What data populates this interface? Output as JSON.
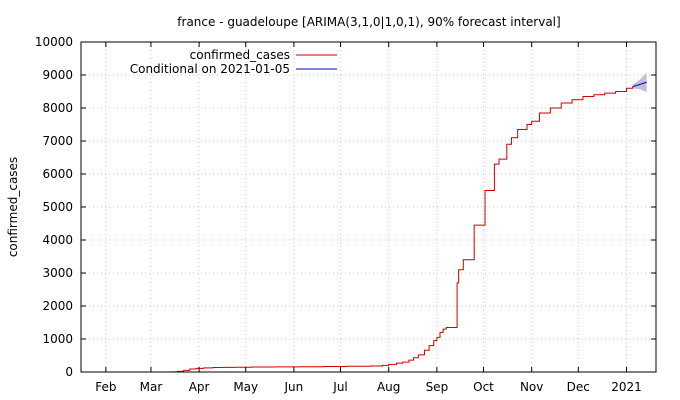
{
  "chart_data": {
    "type": "line",
    "title": "france - guadeloupe [ARIMA(3,1,0|1,0,1), 90% forecast interval]",
    "xlabel": "",
    "ylabel": "confirmed_cases",
    "ylim": [
      0,
      10000
    ],
    "y_ticks": [
      "0",
      "1000",
      "2000",
      "3000",
      "4000",
      "5000",
      "6000",
      "7000",
      "8000",
      "9000",
      "10000"
    ],
    "x_ticks": [
      {
        "label": "Feb",
        "date": "2020-02-01"
      },
      {
        "label": "Mar",
        "date": "2020-03-01"
      },
      {
        "label": "Apr",
        "date": "2020-04-01"
      },
      {
        "label": "May",
        "date": "2020-05-01"
      },
      {
        "label": "Jun",
        "date": "2020-06-01"
      },
      {
        "label": "Jul",
        "date": "2020-07-01"
      },
      {
        "label": "Aug",
        "date": "2020-08-01"
      },
      {
        "label": "Sep",
        "date": "2020-09-01"
      },
      {
        "label": "Oct",
        "date": "2020-10-01"
      },
      {
        "label": "Nov",
        "date": "2020-11-01"
      },
      {
        "label": "Dec",
        "date": "2020-12-01"
      },
      {
        "label": "2021",
        "date": "2021-01-01"
      }
    ],
    "xlim": [
      "2020-01-16",
      "2021-01-20"
    ],
    "grid": true,
    "legend_position": "top-left",
    "series": [
      {
        "name": "confirmed_cases",
        "color": "#cc0000",
        "style": "step",
        "points": [
          [
            "2020-01-16",
            0
          ],
          [
            "2020-03-12",
            0
          ],
          [
            "2020-03-14",
            5
          ],
          [
            "2020-03-18",
            20
          ],
          [
            "2020-03-22",
            50
          ],
          [
            "2020-03-26",
            90
          ],
          [
            "2020-03-30",
            110
          ],
          [
            "2020-04-04",
            125
          ],
          [
            "2020-04-10",
            135
          ],
          [
            "2020-04-16",
            140
          ],
          [
            "2020-04-24",
            145
          ],
          [
            "2020-05-05",
            150
          ],
          [
            "2020-05-20",
            155
          ],
          [
            "2020-06-05",
            160
          ],
          [
            "2020-06-20",
            165
          ],
          [
            "2020-07-05",
            175
          ],
          [
            "2020-07-20",
            180
          ],
          [
            "2020-07-28",
            200
          ],
          [
            "2020-08-01",
            230
          ],
          [
            "2020-08-06",
            270
          ],
          [
            "2020-08-10",
            300
          ],
          [
            "2020-08-14",
            360
          ],
          [
            "2020-08-17",
            430
          ],
          [
            "2020-08-20",
            520
          ],
          [
            "2020-08-24",
            660
          ],
          [
            "2020-08-27",
            800
          ],
          [
            "2020-08-30",
            950
          ],
          [
            "2020-09-01",
            1050
          ],
          [
            "2020-09-03",
            1200
          ],
          [
            "2020-09-05",
            1300
          ],
          [
            "2020-09-07",
            1350
          ],
          [
            "2020-09-14",
            2700
          ],
          [
            "2020-09-15",
            3100
          ],
          [
            "2020-09-18",
            3400
          ],
          [
            "2020-09-25",
            4450
          ],
          [
            "2020-10-02",
            5500
          ],
          [
            "2020-10-08",
            6300
          ],
          [
            "2020-10-11",
            6450
          ],
          [
            "2020-10-16",
            6900
          ],
          [
            "2020-10-19",
            7100
          ],
          [
            "2020-10-23",
            7350
          ],
          [
            "2020-10-29",
            7500
          ],
          [
            "2020-11-01",
            7600
          ],
          [
            "2020-11-06",
            7850
          ],
          [
            "2020-11-13",
            8000
          ],
          [
            "2020-11-20",
            8150
          ],
          [
            "2020-11-27",
            8250
          ],
          [
            "2020-12-04",
            8350
          ],
          [
            "2020-12-11",
            8400
          ],
          [
            "2020-12-18",
            8450
          ],
          [
            "2020-12-25",
            8500
          ],
          [
            "2021-01-01",
            8600
          ],
          [
            "2021-01-05",
            8650
          ]
        ]
      },
      {
        "name": "Conditional on 2021-01-05",
        "color": "#0000cc",
        "style": "line",
        "points": [
          [
            "2021-01-05",
            8650
          ],
          [
            "2021-01-10",
            8720
          ],
          [
            "2021-01-14",
            8780
          ]
        ]
      }
    ],
    "forecast_interval": {
      "color": "#c0c0d8",
      "level": "90%",
      "upper": [
        [
          "2021-01-05",
          8700
        ],
        [
          "2021-01-10",
          8880
        ],
        [
          "2021-01-14",
          9080
        ]
      ],
      "lower": [
        [
          "2021-01-05",
          8600
        ],
        [
          "2021-01-10",
          8560
        ],
        [
          "2021-01-14",
          8480
        ]
      ]
    }
  }
}
